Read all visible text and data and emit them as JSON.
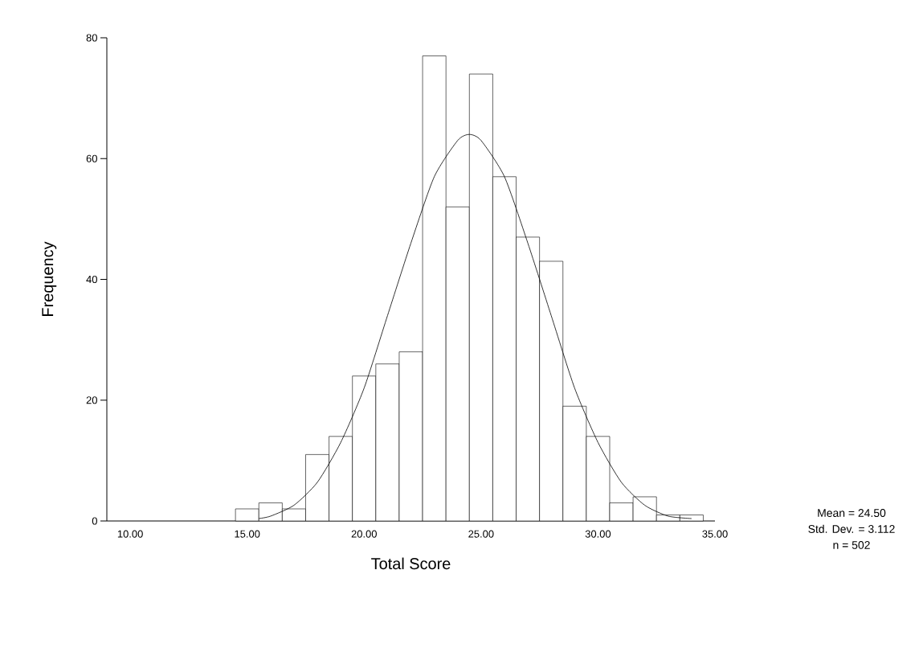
{
  "chart_data": {
    "type": "histogram",
    "xlabel": "Total Score",
    "ylabel": "Frequency",
    "bins": [
      14.5,
      15.5,
      16.5,
      17.5,
      18.5,
      19.5,
      20.5,
      21.5,
      22.5,
      23.5,
      24.5,
      25.5,
      26.5,
      27.5,
      28.5,
      29.5,
      30.5,
      31.5,
      32.5,
      33.5,
      34.5
    ],
    "values": [
      2,
      3,
      2,
      11,
      14,
      24,
      26,
      28,
      77,
      52,
      74,
      57,
      47,
      43,
      19,
      14,
      3,
      4,
      1,
      1
    ],
    "color": "#ffffff",
    "series": [
      {
        "type": "line",
        "color": "#000000",
        "x": [
          15.5,
          16,
          17,
          18,
          19,
          20,
          21,
          22,
          23,
          24,
          24.5,
          25,
          26,
          27,
          28,
          29,
          30,
          31,
          32,
          33,
          34
        ],
        "values": [
          0.4,
          0.8,
          2.6,
          6.4,
          13,
          22,
          34,
          46,
          57,
          63,
          64,
          63,
          57,
          46,
          34,
          22,
          13,
          6.4,
          2.6,
          0.8,
          0.4
        ]
      }
    ],
    "xlim": [
      9,
      35
    ],
    "ylim": [
      0,
      80
    ],
    "xticks": [
      {
        "value": 10,
        "label": "10.00"
      },
      {
        "value": 15,
        "label": "15.00"
      },
      {
        "value": 20,
        "label": "20.00"
      },
      {
        "value": 25,
        "label": "25.00"
      },
      {
        "value": 30,
        "label": "30.00"
      },
      {
        "value": 35,
        "label": "35.00"
      }
    ],
    "yticks": [
      0,
      20,
      40,
      60,
      80
    ],
    "annotations": [
      "Mean = 24.50",
      "Std. Dev. = 3.112",
      "n = 502"
    ]
  }
}
